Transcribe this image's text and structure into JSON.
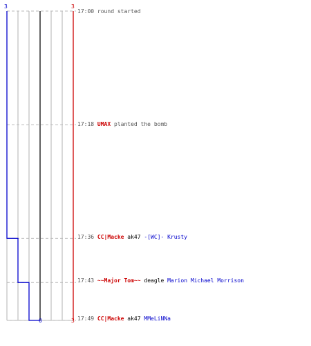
{
  "colors": {
    "t_team": "#cc0000",
    "ct_team": "#0000cc",
    "grid": "#b0b0b0",
    "center": "#606060",
    "dash": "#b8b8b8"
  },
  "scores": {
    "ct_start": "3",
    "t_start": "3",
    "ct_end": "0",
    "t_end": "3"
  },
  "chart_data": {
    "type": "line",
    "series": [
      {
        "x": [
          "17:00",
          "17:18",
          "17:36",
          "17:43",
          "17:49"
        ],
        "values": [
          3,
          3,
          2,
          1,
          0
        ]
      },
      {
        "x": [
          "17:00",
          "17:18",
          "17:36",
          "17:43",
          "17:49"
        ],
        "values": [
          3,
          3,
          3,
          3,
          3
        ]
      }
    ]
  },
  "events": [
    {
      "time": "17:00",
      "text": "round started"
    },
    {
      "time": "17:18",
      "player": "UMAX",
      "text": "planted the bomb"
    },
    {
      "time": "17:36",
      "killer": "CC|Macke",
      "weapon": "ak47",
      "victim": "-[WC]- Krusty"
    },
    {
      "time": "17:43",
      "killer": "~~Major Tom~~",
      "weapon": "deagle",
      "victim": "Marion Michael Morrison"
    },
    {
      "time": "17:49",
      "killer": "CC|Macke",
      "weapon": "ak47",
      "victim": "MMeLiNNa"
    }
  ]
}
